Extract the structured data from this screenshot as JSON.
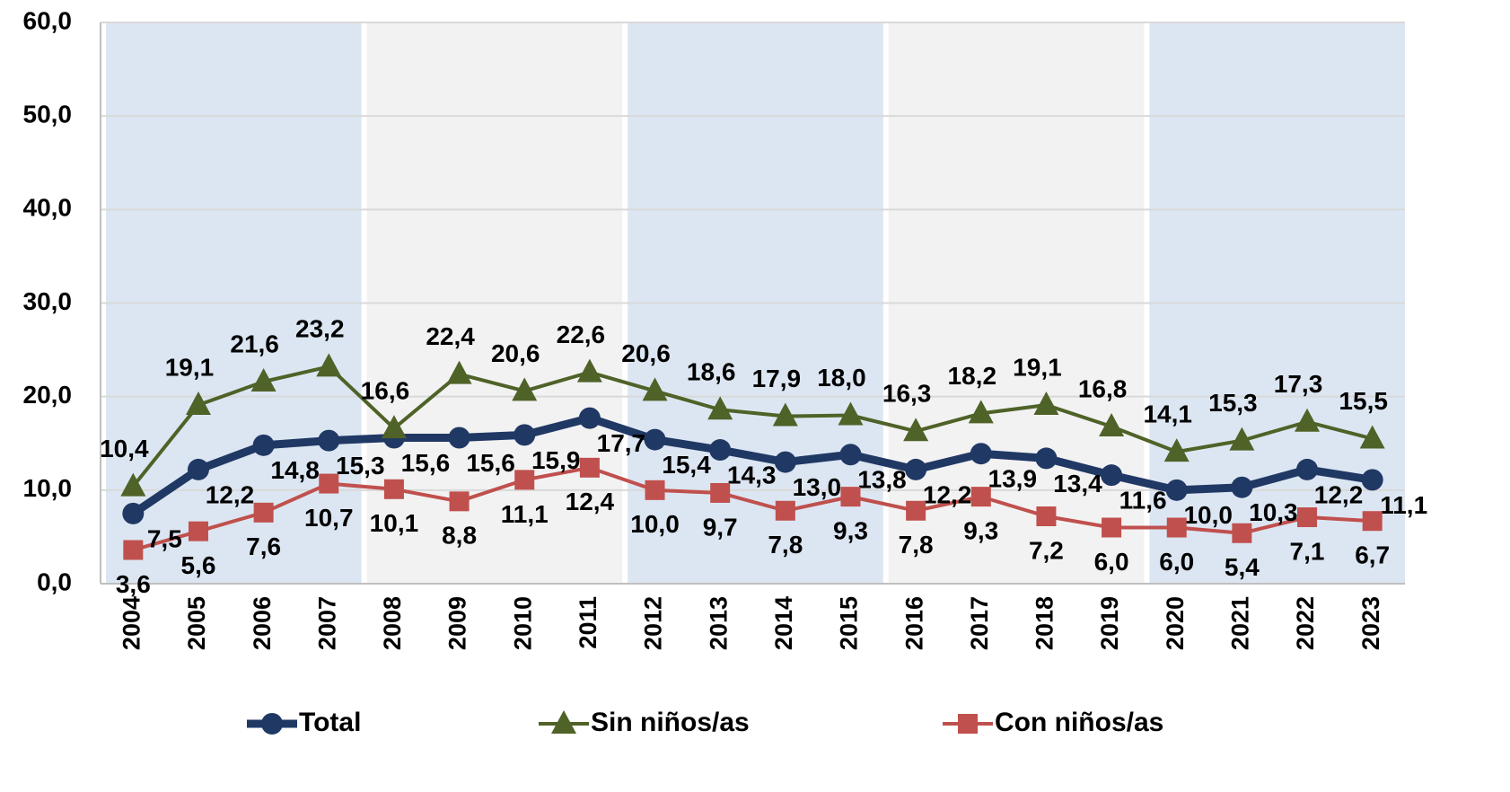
{
  "chart_data": {
    "type": "line",
    "categories": [
      "2004",
      "2005",
      "2006",
      "2007",
      "2008",
      "2009",
      "2010",
      "2011",
      "2012",
      "2013",
      "2014",
      "2015",
      "2016",
      "2017",
      "2018",
      "2019",
      "2020",
      "2021",
      "2022",
      "2023"
    ],
    "series": [
      {
        "name": "Total",
        "color": "#203864",
        "marker": "circle",
        "values": [
          7.5,
          12.2,
          14.8,
          15.3,
          15.6,
          15.6,
          15.9,
          17.7,
          15.4,
          14.3,
          13.0,
          13.8,
          12.2,
          13.9,
          13.4,
          11.6,
          10.0,
          10.3,
          12.2,
          11.1
        ],
        "value_labels": [
          "7,5",
          "12,2",
          "14,8",
          "15,3",
          "15,6",
          "15,6",
          "15,9",
          "17,7",
          "15,4",
          "14,3",
          "13,0",
          "13,8",
          "12,2",
          "13,9",
          "13,4",
          "11,6",
          "10,0",
          "10,3",
          "12,2",
          "11,1"
        ]
      },
      {
        "name": "Sin niños/as",
        "color": "#4f6228",
        "marker": "triangle",
        "values": [
          10.4,
          19.1,
          21.6,
          23.2,
          16.6,
          22.4,
          20.6,
          22.6,
          20.6,
          18.6,
          17.9,
          18.0,
          16.3,
          18.2,
          19.1,
          16.8,
          14.1,
          15.3,
          17.3,
          15.5
        ],
        "value_labels": [
          "10,4",
          "19,1",
          "21,6",
          "23,2",
          "16,6",
          "22,4",
          "20,6",
          "22,6",
          "20,6",
          "18,6",
          "17,9",
          "18,0",
          "16,3",
          "18,2",
          "19,1",
          "16,8",
          "14,1",
          "15,3",
          "17,3",
          "15,5"
        ]
      },
      {
        "name": "Con niños/as",
        "color": "#c0504d",
        "marker": "square",
        "values": [
          3.6,
          5.6,
          7.6,
          10.7,
          10.1,
          8.8,
          11.1,
          12.4,
          10.0,
          9.7,
          7.8,
          9.3,
          7.8,
          9.3,
          7.2,
          6.0,
          6.0,
          5.4,
          7.1,
          6.7
        ],
        "value_labels": [
          "3,6",
          "5,6",
          "7,6",
          "10,7",
          "10,1",
          "8,8",
          "11,1",
          "12,4",
          "10,0",
          "9,7",
          "7,8",
          "9,3",
          "7,8",
          "9,3",
          "7,2",
          "6,0",
          "6,0",
          "5,4",
          "7,1",
          "6,7"
        ]
      }
    ],
    "ylim": [
      0,
      60
    ],
    "yticks": [
      {
        "value": 0,
        "label": "0,0"
      },
      {
        "value": 10,
        "label": "10,0"
      },
      {
        "value": 20,
        "label": "20,0"
      },
      {
        "value": 30,
        "label": "30,0"
      },
      {
        "value": 40,
        "label": "40,0"
      },
      {
        "value": 50,
        "label": "50,0"
      },
      {
        "value": 60,
        "label": "60,0"
      }
    ],
    "grid": true,
    "legend": "bottom"
  }
}
